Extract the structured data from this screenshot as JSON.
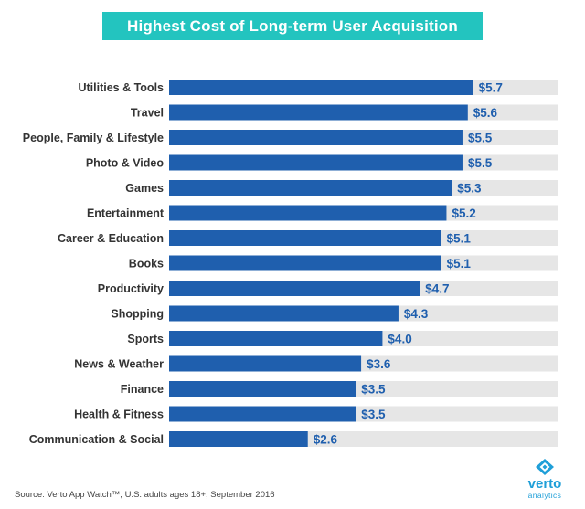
{
  "chart_data": {
    "type": "bar",
    "orientation": "horizontal",
    "title": "Highest Cost of Long-term User Acquisition",
    "categories": [
      "Utilities & Tools",
      "Travel",
      "People, Family & Lifestyle",
      "Photo & Video",
      "Games",
      "Entertainment",
      "Career & Education",
      "Books",
      "Productivity",
      "Shopping",
      "Sports",
      "News & Weather",
      "Finance",
      "Health & Fitness",
      "Communication & Social"
    ],
    "values": [
      5.7,
      5.6,
      5.5,
      5.5,
      5.3,
      5.2,
      5.1,
      5.1,
      4.7,
      4.3,
      4.0,
      3.6,
      3.5,
      3.5,
      2.6
    ],
    "value_labels": [
      "$5.7",
      "$5.6",
      "$5.5",
      "$5.5",
      "$5.3",
      "$5.2",
      "$5.1",
      "$5.1",
      "$4.7",
      "$4.3",
      "$4.0",
      "$3.6",
      "$3.5",
      "$3.5",
      "$2.6"
    ],
    "xlim": [
      0,
      7.3
    ],
    "xlabel": "",
    "ylabel": "",
    "grid": false,
    "bar_color": "#1f5fae",
    "track_color": "#e6e6e6",
    "value_color": "#1f5fae"
  },
  "footer": {
    "source": "Source: Verto App Watch™, U.S. adults ages 18+, September 2016"
  },
  "logo": {
    "word": "verto",
    "sub": "analytics",
    "icon": "verto-diamond-icon",
    "color": "#1f9fd8"
  },
  "colors": {
    "title_bg": "#23c4bf",
    "title_text": "#ffffff"
  }
}
